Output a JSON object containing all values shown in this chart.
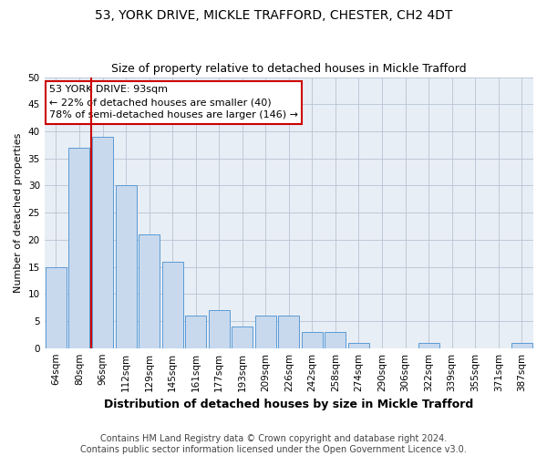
{
  "title": "53, YORK DRIVE, MICKLE TRAFFORD, CHESTER, CH2 4DT",
  "subtitle": "Size of property relative to detached houses in Mickle Trafford",
  "xlabel": "Distribution of detached houses by size in Mickle Trafford",
  "ylabel": "Number of detached properties",
  "categories": [
    "64sqm",
    "80sqm",
    "96sqm",
    "112sqm",
    "129sqm",
    "145sqm",
    "161sqm",
    "177sqm",
    "193sqm",
    "209sqm",
    "226sqm",
    "242sqm",
    "258sqm",
    "274sqm",
    "290sqm",
    "306sqm",
    "322sqm",
    "339sqm",
    "355sqm",
    "371sqm",
    "387sqm"
  ],
  "values": [
    15,
    37,
    39,
    30,
    21,
    16,
    6,
    7,
    4,
    6,
    6,
    3,
    3,
    1,
    0,
    0,
    1,
    0,
    0,
    0,
    1
  ],
  "bar_color": "#c8d9ee",
  "bar_edge_color": "#5b9bd5",
  "ylim": [
    0,
    50
  ],
  "yticks": [
    0,
    5,
    10,
    15,
    20,
    25,
    30,
    35,
    40,
    45,
    50
  ],
  "property_line_index": 1.5,
  "annotation_text": "53 YORK DRIVE: 93sqm\n← 22% of detached houses are smaller (40)\n78% of semi-detached houses are larger (146) →",
  "annotation_box_color": "#ffffff",
  "annotation_box_edge": "#cc0000",
  "line_color": "#cc0000",
  "footer_text": "Contains HM Land Registry data © Crown copyright and database right 2024.\nContains public sector information licensed under the Open Government Licence v3.0.",
  "bg_color": "#ffffff",
  "plot_bg_color": "#e8eef5",
  "grid_color": "#b8c4d4",
  "title_fontsize": 10,
  "subtitle_fontsize": 9,
  "xlabel_fontsize": 9,
  "ylabel_fontsize": 8,
  "tick_fontsize": 7.5,
  "annotation_fontsize": 8,
  "footer_fontsize": 7
}
